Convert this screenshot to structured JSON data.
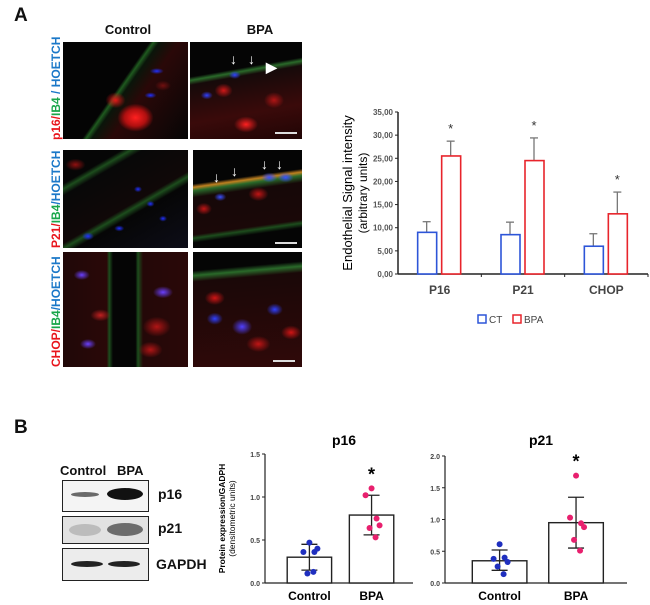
{
  "panel_a": {
    "letter": "A",
    "columns": [
      "Control",
      "BPA"
    ],
    "rows": [
      {
        "parts": [
          {
            "text": "p16",
            "color": "red"
          },
          {
            "text": "/",
            "color": "red"
          },
          {
            "text": "IB4",
            "color": "green"
          },
          {
            "text": " / HOETCH",
            "color": "blue"
          }
        ]
      },
      {
        "parts": [
          {
            "text": "P21",
            "color": "red"
          },
          {
            "text": "/",
            "color": "red"
          },
          {
            "text": "IB4",
            "color": "green"
          },
          {
            "text": "/HOETCH",
            "color": "blue"
          }
        ]
      },
      {
        "parts": [
          {
            "text": "CHOP",
            "color": "red"
          },
          {
            "text": "/",
            "color": "red"
          },
          {
            "text": "IB4",
            "color": "green"
          },
          {
            "text": "/HOETCH",
            "color": "blue"
          }
        ]
      }
    ]
  },
  "panel_b": {
    "letter": "B",
    "blot_columns": [
      "Control",
      "BPA"
    ],
    "blot_rows": [
      "p16",
      "p21",
      "GAPDH"
    ]
  },
  "chart_data": [
    {
      "type": "bar",
      "ylabel": "Endothelial Signal intensity",
      "ylabel2": "(arbitrary units)",
      "categories": [
        "P16",
        "P21",
        "CHOP"
      ],
      "ylim": [
        0,
        35
      ],
      "yticks": [
        "0,00",
        "5,00",
        "10,00",
        "15,00",
        "20,00",
        "25,00",
        "30,00",
        "35,00"
      ],
      "legend_position": "bottom",
      "series": [
        {
          "name": "CT",
          "color": "#2d55d8",
          "values": [
            9.0,
            8.5,
            6.0
          ],
          "error": [
            2.3,
            2.7,
            2.7
          ]
        },
        {
          "name": "BPA",
          "color": "#e8242b",
          "values": [
            25.5,
            24.5,
            13.0
          ],
          "error": [
            3.2,
            4.9,
            4.7
          ]
        }
      ],
      "significance": [
        "*",
        "*",
        "*"
      ]
    },
    {
      "type": "bar",
      "title": "p16",
      "ylabel": "Protein expression/GADPH",
      "ylabel2": "(densitometric units)",
      "categories": [
        "Control",
        "BPA"
      ],
      "ylim": [
        0,
        1.5
      ],
      "yticks": [
        "0.0",
        "0.5",
        "1.0",
        "1.5"
      ],
      "means": [
        0.3,
        0.79
      ],
      "error_low": [
        0.15,
        0.56
      ],
      "error_high": [
        0.45,
        1.02
      ],
      "points": [
        [
          0.47,
          0.36,
          0.36,
          0.4,
          0.11,
          0.13
        ],
        [
          1.1,
          1.02,
          0.75,
          0.67,
          0.64,
          0.53
        ]
      ],
      "point_colors": [
        "#1f2fbf",
        "#e8206e"
      ],
      "significance": [
        "",
        "*"
      ]
    },
    {
      "type": "bar",
      "title": "p21",
      "categories": [
        "Control",
        "BPA"
      ],
      "ylim": [
        0,
        2.0
      ],
      "yticks": [
        "0.0",
        "0.5",
        "1.0",
        "1.5",
        "2.0"
      ],
      "means": [
        0.35,
        0.95
      ],
      "error_low": [
        0.2,
        0.55
      ],
      "error_high": [
        0.52,
        1.35
      ],
      "points": [
        [
          0.61,
          0.38,
          0.4,
          0.33,
          0.26,
          0.14
        ],
        [
          1.69,
          1.03,
          0.94,
          0.88,
          0.68,
          0.51
        ]
      ],
      "point_colors": [
        "#1f2fbf",
        "#e8206e"
      ],
      "significance": [
        "",
        "*"
      ]
    }
  ]
}
